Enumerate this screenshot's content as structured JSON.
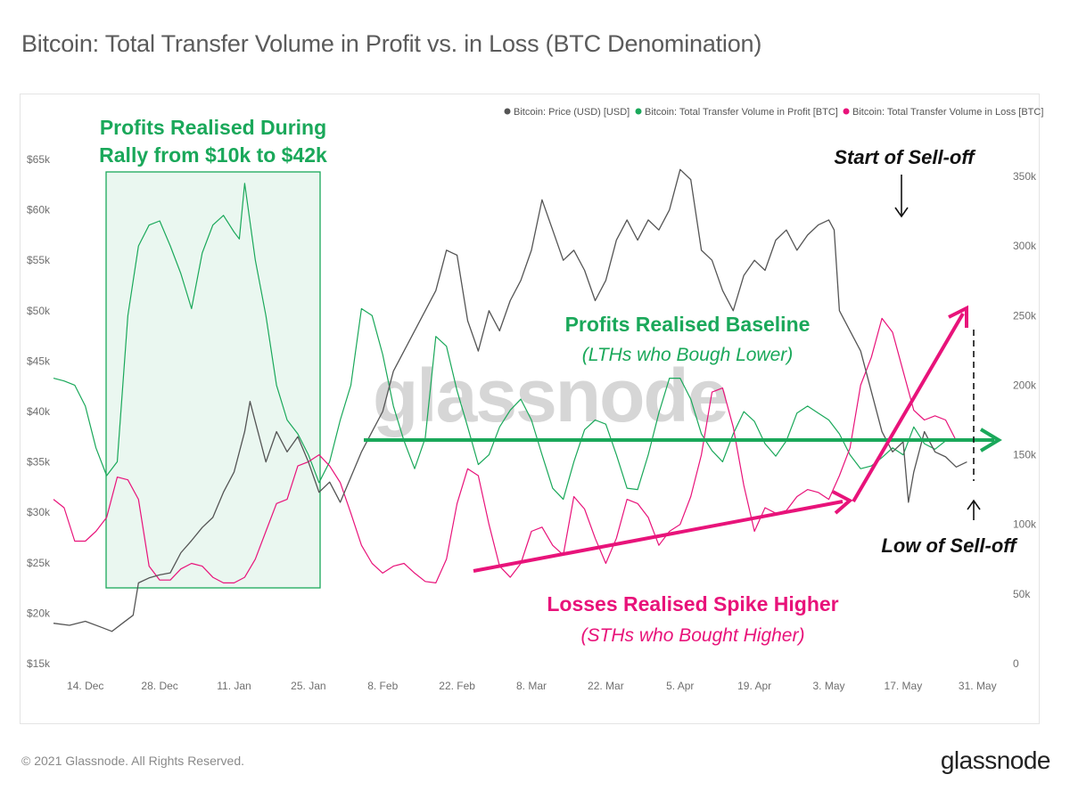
{
  "title": "Bitcoin: Total Transfer Volume in Profit vs. in Loss (BTC Denomination)",
  "copyright": "© 2021 Glassnode. All Rights Reserved.",
  "brand": "glassnode",
  "watermark": "glassnode",
  "colors": {
    "price": "#555555",
    "profit": "#1aa85a",
    "loss": "#e8137a",
    "annotation_black": "#111111"
  },
  "chart_data": {
    "type": "line",
    "legend_position": "top-right",
    "grid": false,
    "x_ticks": [
      "14. Dec",
      "28. Dec",
      "11. Jan",
      "25. Jan",
      "8. Feb",
      "22. Feb",
      "8. Mar",
      "22. Mar",
      "5. Apr",
      "19. Apr",
      "3. May",
      "17. May",
      "31. May"
    ],
    "y_left_ticks": [
      "$15k",
      "$20k",
      "$25k",
      "$30k",
      "$35k",
      "$40k",
      "$45k",
      "$50k",
      "$55k",
      "$60k",
      "$65k"
    ],
    "y_right_ticks": [
      "0",
      "50k",
      "100k",
      "150k",
      "200k",
      "250k",
      "300k",
      "350k"
    ],
    "y_left_range": [
      15000,
      65000
    ],
    "y_right_range": [
      0,
      350000
    ],
    "x_range_days": [
      0,
      180
    ],
    "series": [
      {
        "name": "Bitcoin: Price (USD) [USD]",
        "axis": "left",
        "points": [
          [
            0,
            19000
          ],
          [
            3,
            18800
          ],
          [
            6,
            19200
          ],
          [
            9,
            18600
          ],
          [
            11,
            18200
          ],
          [
            13,
            19000
          ],
          [
            15,
            19800
          ],
          [
            16,
            23000
          ],
          [
            18,
            23500
          ],
          [
            20,
            23800
          ],
          [
            22,
            24000
          ],
          [
            24,
            26000
          ],
          [
            26,
            27200
          ],
          [
            28,
            28500
          ],
          [
            30,
            29500
          ],
          [
            32,
            32000
          ],
          [
            34,
            34000
          ],
          [
            36,
            38000
          ],
          [
            37,
            41000
          ],
          [
            38,
            39000
          ],
          [
            40,
            35000
          ],
          [
            42,
            38000
          ],
          [
            44,
            36000
          ],
          [
            46,
            37500
          ],
          [
            48,
            35000
          ],
          [
            50,
            32000
          ],
          [
            52,
            33000
          ],
          [
            54,
            31000
          ],
          [
            56,
            33500
          ],
          [
            58,
            36000
          ],
          [
            60,
            38000
          ],
          [
            62,
            40000
          ],
          [
            64,
            44000
          ],
          [
            66,
            46000
          ],
          [
            68,
            48000
          ],
          [
            70,
            50000
          ],
          [
            72,
            52000
          ],
          [
            74,
            56000
          ],
          [
            76,
            55500
          ],
          [
            78,
            49000
          ],
          [
            80,
            46000
          ],
          [
            82,
            50000
          ],
          [
            84,
            48000
          ],
          [
            86,
            51000
          ],
          [
            88,
            53000
          ],
          [
            90,
            56000
          ],
          [
            92,
            61000
          ],
          [
            94,
            58000
          ],
          [
            96,
            55000
          ],
          [
            98,
            56000
          ],
          [
            100,
            54000
          ],
          [
            102,
            51000
          ],
          [
            104,
            53000
          ],
          [
            106,
            57000
          ],
          [
            108,
            59000
          ],
          [
            110,
            57000
          ],
          [
            112,
            59000
          ],
          [
            114,
            58000
          ],
          [
            116,
            60000
          ],
          [
            118,
            64000
          ],
          [
            120,
            63000
          ],
          [
            122,
            56000
          ],
          [
            124,
            55000
          ],
          [
            126,
            52000
          ],
          [
            128,
            50000
          ],
          [
            130,
            53500
          ],
          [
            132,
            55000
          ],
          [
            134,
            54000
          ],
          [
            136,
            57000
          ],
          [
            138,
            58000
          ],
          [
            140,
            56000
          ],
          [
            142,
            57500
          ],
          [
            144,
            58500
          ],
          [
            146,
            59000
          ],
          [
            147,
            58000
          ],
          [
            148,
            50000
          ],
          [
            150,
            48000
          ],
          [
            152,
            46000
          ],
          [
            154,
            42000
          ],
          [
            156,
            38000
          ],
          [
            158,
            36000
          ],
          [
            160,
            37000
          ],
          [
            161,
            31000
          ],
          [
            162,
            34000
          ],
          [
            164,
            38000
          ],
          [
            166,
            36000
          ],
          [
            168,
            35500
          ],
          [
            170,
            34500
          ],
          [
            172,
            35000
          ]
        ]
      },
      {
        "name": "Bitcoin: Total Transfer Volume in Profit [BTC]",
        "axis": "right",
        "points": [
          [
            0,
            205000
          ],
          [
            2,
            203000
          ],
          [
            4,
            200000
          ],
          [
            6,
            185000
          ],
          [
            8,
            155000
          ],
          [
            10,
            135000
          ],
          [
            12,
            145000
          ],
          [
            14,
            250000
          ],
          [
            16,
            300000
          ],
          [
            18,
            315000
          ],
          [
            20,
            318000
          ],
          [
            22,
            300000
          ],
          [
            24,
            280000
          ],
          [
            26,
            255000
          ],
          [
            28,
            295000
          ],
          [
            30,
            315000
          ],
          [
            32,
            322000
          ],
          [
            34,
            310000
          ],
          [
            35,
            305000
          ],
          [
            36,
            345000
          ],
          [
            38,
            290000
          ],
          [
            40,
            250000
          ],
          [
            42,
            200000
          ],
          [
            44,
            175000
          ],
          [
            46,
            165000
          ],
          [
            48,
            150000
          ],
          [
            50,
            130000
          ],
          [
            52,
            145000
          ],
          [
            54,
            175000
          ],
          [
            56,
            200000
          ],
          [
            58,
            255000
          ],
          [
            60,
            250000
          ],
          [
            62,
            222000
          ],
          [
            64,
            185000
          ],
          [
            66,
            160000
          ],
          [
            68,
            140000
          ],
          [
            70,
            162000
          ],
          [
            72,
            235000
          ],
          [
            74,
            228000
          ],
          [
            76,
            196000
          ],
          [
            78,
            170000
          ],
          [
            80,
            143000
          ],
          [
            82,
            150000
          ],
          [
            84,
            170000
          ],
          [
            86,
            182000
          ],
          [
            88,
            190000
          ],
          [
            90,
            175000
          ],
          [
            92,
            150000
          ],
          [
            94,
            126000
          ],
          [
            96,
            118000
          ],
          [
            98,
            145000
          ],
          [
            100,
            168000
          ],
          [
            102,
            175000
          ],
          [
            104,
            172000
          ],
          [
            106,
            150000
          ],
          [
            108,
            126000
          ],
          [
            110,
            125000
          ],
          [
            112,
            150000
          ],
          [
            114,
            180000
          ],
          [
            116,
            205000
          ],
          [
            118,
            205000
          ],
          [
            120,
            190000
          ],
          [
            122,
            165000
          ],
          [
            124,
            153000
          ],
          [
            126,
            145000
          ],
          [
            128,
            165000
          ],
          [
            130,
            181000
          ],
          [
            132,
            174000
          ],
          [
            134,
            158000
          ],
          [
            136,
            149000
          ],
          [
            138,
            160000
          ],
          [
            140,
            180000
          ],
          [
            142,
            185000
          ],
          [
            144,
            180000
          ],
          [
            146,
            175000
          ],
          [
            148,
            165000
          ],
          [
            150,
            150000
          ],
          [
            152,
            140000
          ],
          [
            154,
            142000
          ],
          [
            156,
            148000
          ],
          [
            158,
            155000
          ],
          [
            160,
            150000
          ],
          [
            162,
            170000
          ],
          [
            164,
            158000
          ],
          [
            166,
            154000
          ],
          [
            168,
            160000
          ]
        ]
      },
      {
        "name": "Bitcoin: Total Transfer Volume in Loss [BTC]",
        "axis": "right",
        "points": [
          [
            0,
            118000
          ],
          [
            2,
            112000
          ],
          [
            4,
            88000
          ],
          [
            6,
            88000
          ],
          [
            8,
            95000
          ],
          [
            10,
            105000
          ],
          [
            12,
            134000
          ],
          [
            14,
            132000
          ],
          [
            16,
            118000
          ],
          [
            18,
            70000
          ],
          [
            20,
            60000
          ],
          [
            22,
            60000
          ],
          [
            24,
            68000
          ],
          [
            26,
            72000
          ],
          [
            28,
            70000
          ],
          [
            30,
            62000
          ],
          [
            32,
            58000
          ],
          [
            34,
            58000
          ],
          [
            36,
            62000
          ],
          [
            38,
            75000
          ],
          [
            40,
            95000
          ],
          [
            42,
            115000
          ],
          [
            44,
            118000
          ],
          [
            46,
            142000
          ],
          [
            48,
            145000
          ],
          [
            50,
            150000
          ],
          [
            52,
            142000
          ],
          [
            54,
            130000
          ],
          [
            56,
            108000
          ],
          [
            58,
            85000
          ],
          [
            60,
            72000
          ],
          [
            62,
            65000
          ],
          [
            64,
            70000
          ],
          [
            66,
            72000
          ],
          [
            68,
            65000
          ],
          [
            70,
            59000
          ],
          [
            72,
            58000
          ],
          [
            74,
            75000
          ],
          [
            76,
            115000
          ],
          [
            78,
            140000
          ],
          [
            80,
            135000
          ],
          [
            82,
            100000
          ],
          [
            84,
            70000
          ],
          [
            86,
            62000
          ],
          [
            88,
            72000
          ],
          [
            90,
            95000
          ],
          [
            92,
            98000
          ],
          [
            94,
            85000
          ],
          [
            96,
            78000
          ],
          [
            98,
            120000
          ],
          [
            100,
            111000
          ],
          [
            102,
            90000
          ],
          [
            104,
            72000
          ],
          [
            106,
            90000
          ],
          [
            108,
            118000
          ],
          [
            110,
            115000
          ],
          [
            112,
            105000
          ],
          [
            114,
            85000
          ],
          [
            116,
            95000
          ],
          [
            118,
            100000
          ],
          [
            120,
            120000
          ],
          [
            122,
            150000
          ],
          [
            124,
            195000
          ],
          [
            126,
            198000
          ],
          [
            128,
            170000
          ],
          [
            130,
            128000
          ],
          [
            132,
            95000
          ],
          [
            134,
            112000
          ],
          [
            136,
            108000
          ],
          [
            138,
            110000
          ],
          [
            140,
            120000
          ],
          [
            142,
            125000
          ],
          [
            144,
            123000
          ],
          [
            146,
            118000
          ],
          [
            148,
            135000
          ],
          [
            150,
            155000
          ],
          [
            152,
            200000
          ],
          [
            154,
            220000
          ],
          [
            156,
            248000
          ],
          [
            158,
            238000
          ],
          [
            160,
            210000
          ],
          [
            162,
            182000
          ],
          [
            164,
            175000
          ],
          [
            166,
            178000
          ],
          [
            168,
            175000
          ],
          [
            170,
            160000
          ]
        ]
      }
    ],
    "annotations": {
      "profits_rally": [
        "Profits Realised During",
        "Rally from $10k to $42k"
      ],
      "baseline_title": "Profits Realised Baseline",
      "baseline_sub": "(LTHs who Bough Lower)",
      "losses_title": "Losses Realised Spike Higher",
      "losses_sub": "(STHs who Bought Higher)",
      "start_selloff": "Start of Sell-off",
      "low_selloff": "Low of Sell-off"
    }
  }
}
